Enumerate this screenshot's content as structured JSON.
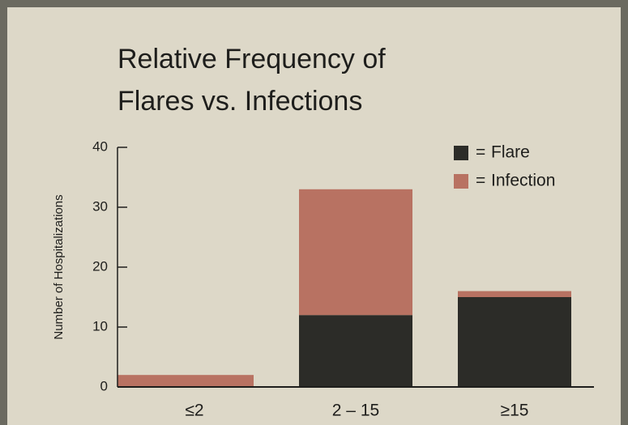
{
  "chart_data": {
    "type": "stacked_bar",
    "title": [
      "Relative Frequency of",
      "Flares vs. Infections"
    ],
    "ylabel": "Number of Hospitalizations",
    "categories": [
      "≤2",
      "2 – 15",
      "≥15"
    ],
    "series": [
      {
        "name": "Flare",
        "color": "#2c2c28",
        "values": [
          0,
          12,
          15
        ]
      },
      {
        "name": "Infection",
        "color": "#b87262",
        "values": [
          2,
          21,
          1
        ]
      }
    ],
    "legend_prefix": "=",
    "legend": "upper right",
    "ylim": [
      0,
      40
    ],
    "yticks": [
      0,
      10,
      20,
      30,
      40
    ]
  }
}
